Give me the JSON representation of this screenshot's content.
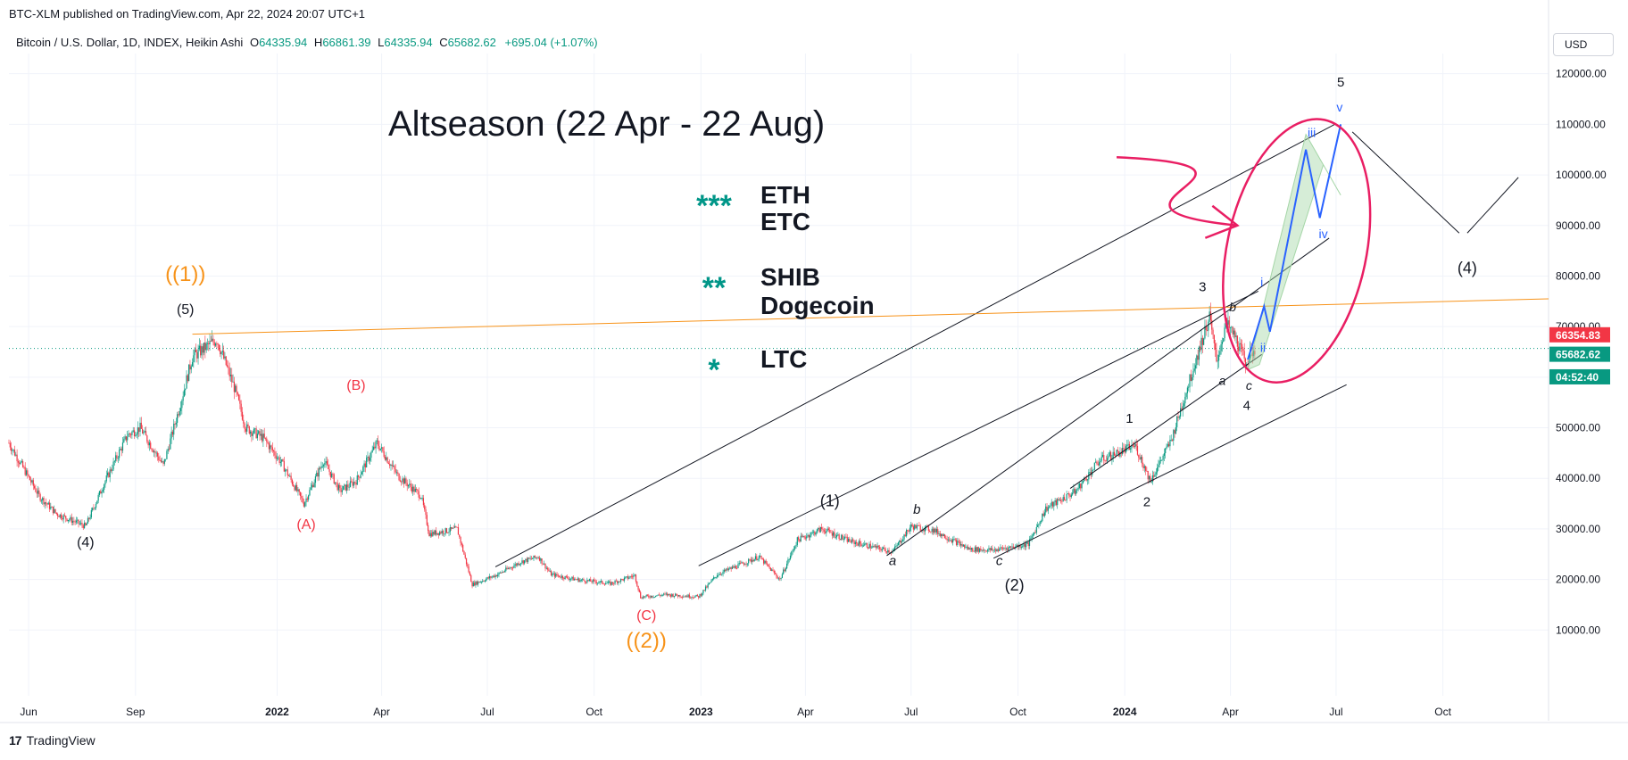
{
  "header": {
    "credit": "BTC-XLM published on TradingView.com, Apr 22, 2024 20:07 UTC+1",
    "symbol_desc": "Bitcoin / U.S. Dollar, 1D, INDEX, Heikin Ashi",
    "ohlc": [
      {
        "key": "O",
        "value": "64335.94"
      },
      {
        "key": "H",
        "value": "66861.39"
      },
      {
        "key": "L",
        "value": "64335.94"
      },
      {
        "key": "C",
        "value": "65682.62"
      }
    ],
    "change": "+695.04 (+1.07%)",
    "currency": "USD"
  },
  "footer": {
    "brand": "TradingView",
    "brand_mark": "17"
  },
  "colors": {
    "up": "#089981",
    "down": "#f23645",
    "orange": "#f7931a",
    "red_text": "#f23645",
    "magenta": "#e91e63",
    "blue": "#2962ff",
    "teal": "#009688",
    "green_fill": "#a5d6a7"
  },
  "chart_data": {
    "type": "candlestick",
    "title": "Bitcoin / U.S. Dollar, 1D, INDEX, Heikin Ashi",
    "x_ticks": [
      "Jun",
      "Sep",
      "2022",
      "Apr",
      "Jul",
      "Oct",
      "2023",
      "Apr",
      "Jul",
      "Oct",
      "2024",
      "Apr",
      "Jul",
      "Oct"
    ],
    "x_tick_dates": [
      "2021-06-01",
      "2021-09-01",
      "2022-01-01",
      "2022-04-01",
      "2022-07-01",
      "2022-10-01",
      "2023-01-01",
      "2023-04-01",
      "2023-07-01",
      "2023-10-01",
      "2024-01-01",
      "2024-04-01",
      "2024-07-01",
      "2024-10-01"
    ],
    "x_range": [
      "2021-05-15",
      "2024-12-31"
    ],
    "y_ticks": [
      "120000.00",
      "110000.00",
      "100000.00",
      "90000.00",
      "80000.00",
      "70000.00",
      "60000.00",
      "50000.00",
      "40000.00",
      "30000.00",
      "20000.00",
      "10000.00"
    ],
    "y_tick_values": [
      120000,
      110000,
      100000,
      90000,
      80000,
      70000,
      60000,
      50000,
      40000,
      30000,
      20000,
      10000
    ],
    "y_range": [
      -3000,
      124000
    ],
    "price_path": [
      [
        "2021-05-15",
        47000
      ],
      [
        "2021-06-10",
        36500
      ],
      [
        "2021-06-25",
        33000
      ],
      [
        "2021-07-20",
        30500
      ],
      [
        "2021-08-05",
        39000
      ],
      [
        "2021-08-25",
        48500
      ],
      [
        "2021-09-05",
        50000
      ],
      [
        "2021-09-25",
        42500
      ],
      [
        "2021-10-10",
        55000
      ],
      [
        "2021-10-20",
        64000
      ],
      [
        "2021-11-10",
        67500
      ],
      [
        "2021-11-25",
        58000
      ],
      [
        "2021-12-05",
        50000
      ],
      [
        "2021-12-20",
        48000
      ],
      [
        "2022-01-05",
        43000
      ],
      [
        "2022-01-24",
        35000
      ],
      [
        "2022-02-10",
        43500
      ],
      [
        "2022-02-24",
        37500
      ],
      [
        "2022-03-10",
        39500
      ],
      [
        "2022-03-28",
        47000
      ],
      [
        "2022-04-15",
        40500
      ],
      [
        "2022-05-05",
        36500
      ],
      [
        "2022-05-12",
        29000
      ],
      [
        "2022-06-05",
        30000
      ],
      [
        "2022-06-18",
        19000
      ],
      [
        "2022-07-10",
        21000
      ],
      [
        "2022-07-30",
        23500
      ],
      [
        "2022-08-14",
        24500
      ],
      [
        "2022-08-25",
        21000
      ],
      [
        "2022-09-15",
        20000
      ],
      [
        "2022-10-15",
        19200
      ],
      [
        "2022-11-05",
        20800
      ],
      [
        "2022-11-10",
        16500
      ],
      [
        "2022-12-01",
        17000
      ],
      [
        "2022-12-30",
        16600
      ],
      [
        "2023-01-15",
        21000
      ],
      [
        "2023-02-20",
        24500
      ],
      [
        "2023-03-10",
        20000
      ],
      [
        "2023-03-25",
        27800
      ],
      [
        "2023-04-15",
        30000
      ],
      [
        "2023-05-10",
        27500
      ],
      [
        "2023-06-15",
        25500
      ],
      [
        "2023-07-01",
        30500
      ],
      [
        "2023-07-20",
        29800
      ],
      [
        "2023-08-20",
        26000
      ],
      [
        "2023-09-10",
        25800
      ],
      [
        "2023-10-10",
        27000
      ],
      [
        "2023-10-25",
        34000
      ],
      [
        "2023-11-20",
        37500
      ],
      [
        "2023-12-10",
        43500
      ],
      [
        "2024-01-10",
        46500
      ],
      [
        "2024-01-23",
        39500
      ],
      [
        "2024-02-10",
        47500
      ],
      [
        "2024-02-28",
        61000
      ],
      [
        "2024-03-14",
        72000
      ],
      [
        "2024-03-20",
        63000
      ],
      [
        "2024-03-28",
        70500
      ],
      [
        "2024-04-05",
        68000
      ],
      [
        "2024-04-14",
        63000
      ],
      [
        "2024-04-22",
        65600
      ]
    ],
    "last_price": "65682.62",
    "last_price_value": 65682.62,
    "price_labels": [
      {
        "text": "66354.83",
        "value": 66354.83,
        "color": "#f23645"
      },
      {
        "text": "65682.62",
        "value": 65682.62,
        "color": "#089981"
      },
      {
        "text": "04:52:40",
        "value": 62800,
        "color": "#089981"
      }
    ],
    "trendlines": [
      {
        "name": "upper-channel-line",
        "from": [
          "2022-07-08",
          22500
        ],
        "to": [
          "2024-06-30",
          110000
        ],
        "color": "#131722"
      },
      {
        "name": "mid-channel-line",
        "from": [
          "2022-12-30",
          22700
        ],
        "to": [
          "2024-04-25",
          77000
        ],
        "color": "#131722"
      },
      {
        "name": "inner-channel-upper",
        "from": [
          "2023-06-10",
          24700
        ],
        "to": [
          "2024-06-25",
          87500
        ],
        "color": "#131722"
      },
      {
        "name": "inner-channel-lower",
        "from": [
          "2023-11-15",
          38000
        ],
        "to": [
          "2024-04-28",
          64500
        ],
        "color": "#131722"
      },
      {
        "name": "wave-4-support",
        "from": [
          "2023-09-10",
          24200
        ],
        "to": [
          "2024-07-10",
          58500
        ],
        "color": "#131722"
      },
      {
        "name": "resistance-line",
        "from": [
          "2021-10-20",
          68500
        ],
        "to": [
          "2024-12-31",
          75500
        ],
        "color": "#f7931a"
      },
      {
        "name": "wave-4-down-leg",
        "from": [
          "2024-07-15",
          108500
        ],
        "to": [
          "2024-10-15",
          88500
        ],
        "color": "#131722"
      },
      {
        "name": "wave-4-up-leg",
        "from": [
          "2024-10-22",
          88500
        ],
        "to": [
          "2024-12-05",
          99500
        ],
        "color": "#131722"
      }
    ],
    "projection_path": [
      [
        "2024-04-16",
        63500
      ],
      [
        "2024-04-30",
        74000
      ],
      [
        "2024-05-05",
        69000
      ],
      [
        "2024-06-05",
        105000
      ],
      [
        "2024-06-17",
        91500
      ],
      [
        "2024-07-05",
        110000
      ]
    ],
    "altseason_arrow": {
      "from": [
        "2023-12-25",
        103500
      ],
      "to": [
        "2024-04-07",
        90000
      ]
    },
    "wave_labels": [
      {
        "text": "((1))",
        "x": "2021-10-14",
        "y": 79000,
        "color": "#f7931a",
        "size": 24
      },
      {
        "text": "((2))",
        "x": "2022-11-15",
        "y": 6500,
        "color": "#f7931a",
        "size": 24
      },
      {
        "text": "(5)",
        "x": "2021-10-14",
        "y": 72500,
        "color": "#131722",
        "size": 16
      },
      {
        "text": "(4)",
        "x": "2021-07-20",
        "y": 26500,
        "color": "#131722",
        "size": 16
      },
      {
        "text": "(B)",
        "x": "2022-03-10",
        "y": 57500,
        "color": "#f23645",
        "size": 16
      },
      {
        "text": "(A)",
        "x": "2022-01-26",
        "y": 30000,
        "color": "#f23645",
        "size": 16
      },
      {
        "text": "(C)",
        "x": "2022-11-15",
        "y": 12000,
        "color": "#f23645",
        "size": 16
      },
      {
        "text": "(1)",
        "x": "2023-04-22",
        "y": 34500,
        "color": "#131722",
        "size": 18
      },
      {
        "text": "(2)",
        "x": "2023-09-28",
        "y": 17800,
        "color": "#131722",
        "size": 18
      },
      {
        "text": "b",
        "x": "2023-07-06",
        "y": 33000,
        "color": "#131722",
        "size": 15
      },
      {
        "text": "a",
        "x": "2023-06-15",
        "y": 22800,
        "color": "#131722",
        "size": 15
      },
      {
        "text": "c",
        "x": "2023-09-15",
        "y": 22800,
        "color": "#131722",
        "size": 15
      },
      {
        "text": "1",
        "x": "2024-01-05",
        "y": 51000,
        "color": "#131722",
        "size": 15
      },
      {
        "text": "2",
        "x": "2024-01-20",
        "y": 34500,
        "color": "#131722",
        "size": 15
      },
      {
        "text": "3",
        "x": "2024-03-08",
        "y": 77000,
        "color": "#131722",
        "size": 15
      },
      {
        "text": "4",
        "x": "2024-04-15",
        "y": 53500,
        "color": "#131722",
        "size": 15
      },
      {
        "text": "5",
        "x": "2024-07-05",
        "y": 117500,
        "color": "#131722",
        "size": 15
      },
      {
        "text": "(4)",
        "x": "2024-10-22",
        "y": 80500,
        "color": "#131722",
        "size": 18
      },
      {
        "text": "b",
        "x": "2024-04-03",
        "y": 73000,
        "color": "#131722",
        "size": 14
      },
      {
        "text": "a",
        "x": "2024-03-25",
        "y": 58500,
        "color": "#131722",
        "size": 14
      },
      {
        "text": "c",
        "x": "2024-04-17",
        "y": 57500,
        "color": "#131722",
        "size": 14
      },
      {
        "text": "i",
        "x": "2024-04-28",
        "y": 78000,
        "color": "#2962ff",
        "size": 14
      },
      {
        "text": "ii",
        "x": "2024-04-29",
        "y": 65000,
        "color": "#2962ff",
        "size": 14
      },
      {
        "text": "iii",
        "x": "2024-06-10",
        "y": 107500,
        "color": "#2962ff",
        "size": 14
      },
      {
        "text": "iv",
        "x": "2024-06-20",
        "y": 87500,
        "color": "#2962ff",
        "size": 14
      },
      {
        "text": "v",
        "x": "2024-07-04",
        "y": 112500,
        "color": "#2962ff",
        "size": 14
      }
    ],
    "annotations": {
      "headline": "Altseason (22 Apr - 22 Aug)",
      "tiers": [
        {
          "stars": "***",
          "coins": [
            "ETH",
            "ETC"
          ]
        },
        {
          "stars": "**",
          "coins": [
            "SHIB",
            "Dogecoin"
          ]
        },
        {
          "stars": "*",
          "coins": [
            "LTC"
          ]
        }
      ]
    }
  }
}
